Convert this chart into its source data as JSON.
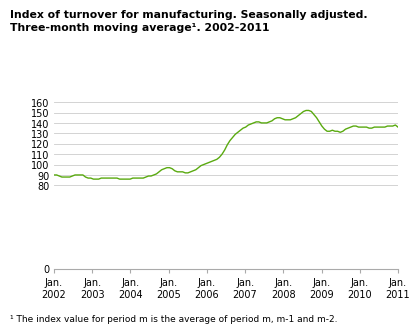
{
  "title_line1": "Index of turnover for manufacturing. Seasonally adjusted.",
  "title_line2": "Three-month moving average¹. 2002-2011",
  "footnote": "¹ The index value for period m is the average of period m, m-1 and m-2.",
  "line_color": "#5aaa10",
  "background_color": "#ffffff",
  "ylim": [
    0,
    163
  ],
  "yticks": [
    0,
    80,
    90,
    100,
    110,
    120,
    130,
    140,
    150,
    160
  ],
  "x_labels": [
    "Jan.\n2002",
    "Jan.\n2003",
    "Jan.\n2004",
    "Jan.\n2005",
    "Jan.\n2006",
    "Jan.\n2007",
    "Jan.\n2008",
    "Jan.\n2009",
    "Jan.\n2010",
    "Jan.\n2011"
  ],
  "y_values": [
    90,
    90,
    89,
    88,
    88,
    88,
    88,
    89,
    90,
    90,
    90,
    90,
    88,
    87,
    87,
    86,
    86,
    86,
    87,
    87,
    87,
    87,
    87,
    87,
    87,
    86,
    86,
    86,
    86,
    86,
    87,
    87,
    87,
    87,
    87,
    88,
    89,
    89,
    90,
    91,
    93,
    95,
    96,
    97,
    97,
    96,
    94,
    93,
    93,
    93,
    92,
    92,
    93,
    94,
    95,
    97,
    99,
    100,
    101,
    102,
    103,
    104,
    105,
    107,
    110,
    114,
    119,
    123,
    126,
    129,
    131,
    133,
    135,
    136,
    138,
    139,
    140,
    141,
    141,
    140,
    140,
    140,
    141,
    142,
    144,
    145,
    145,
    144,
    143,
    143,
    143,
    144,
    145,
    147,
    149,
    151,
    152,
    152,
    151,
    148,
    145,
    141,
    137,
    134,
    132,
    132,
    133,
    132,
    132,
    131,
    132,
    134,
    135,
    136,
    137,
    137,
    136,
    136,
    136,
    136,
    135,
    135,
    136,
    136,
    136,
    136,
    136,
    137,
    137,
    137,
    138,
    136
  ]
}
